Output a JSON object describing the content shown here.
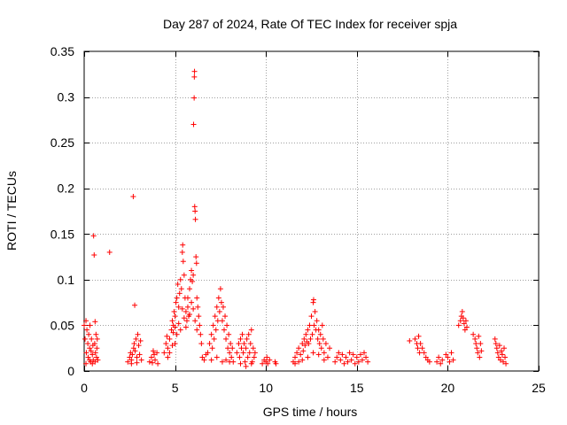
{
  "chart_data": {
    "type": "scatter",
    "title": "Day 287 of 2024, Rate Of TEC Index for receiver spja",
    "xlabel": "GPS time / hours",
    "ylabel": "ROTI / TECUs",
    "xlim": [
      0,
      25
    ],
    "ylim": [
      0,
      0.35
    ],
    "xticks": [
      0,
      5,
      10,
      15,
      20,
      25
    ],
    "xtick_labels": [
      "0",
      "5",
      "10",
      "15",
      "20",
      "25"
    ],
    "yticks": [
      0,
      0.05,
      0.1,
      0.15,
      0.2,
      0.25,
      0.3,
      0.35
    ],
    "ytick_labels": [
      "0",
      "0.05",
      "0.1",
      "0.15",
      "0.2",
      "0.25",
      "0.3",
      "0.35"
    ],
    "grid": true,
    "marker": "+",
    "color": "#ff0000",
    "series": [
      {
        "name": "ROTI",
        "points": [
          [
            0.0,
            0.05
          ],
          [
            0.05,
            0.035
          ],
          [
            0.1,
            0.055
          ],
          [
            0.12,
            0.02
          ],
          [
            0.15,
            0.045
          ],
          [
            0.2,
            0.03
          ],
          [
            0.22,
            0.015
          ],
          [
            0.25,
            0.04
          ],
          [
            0.3,
            0.025
          ],
          [
            0.32,
            0.05
          ],
          [
            0.35,
            0.01
          ],
          [
            0.38,
            0.022
          ],
          [
            0.4,
            0.035
          ],
          [
            0.45,
            0.018
          ],
          [
            0.48,
            0.028
          ],
          [
            0.5,
            0.012
          ],
          [
            0.52,
            0.148
          ],
          [
            0.55,
            0.127
          ],
          [
            0.58,
            0.03
          ],
          [
            0.6,
            0.054
          ],
          [
            0.62,
            0.02
          ],
          [
            0.65,
            0.04
          ],
          [
            0.68,
            0.015
          ],
          [
            0.7,
            0.025
          ],
          [
            0.72,
            0.035
          ],
          [
            0.75,
            0.012
          ],
          [
            0.1,
            0.008
          ],
          [
            0.3,
            0.012
          ],
          [
            0.45,
            0.008
          ],
          [
            0.6,
            0.01
          ],
          [
            1.4,
            0.13
          ],
          [
            2.4,
            0.01
          ],
          [
            2.5,
            0.015
          ],
          [
            2.55,
            0.02
          ],
          [
            2.6,
            0.012
          ],
          [
            2.65,
            0.018
          ],
          [
            2.7,
            0.191
          ],
          [
            2.72,
            0.025
          ],
          [
            2.75,
            0.03
          ],
          [
            2.78,
            0.072
          ],
          [
            2.8,
            0.022
          ],
          [
            2.85,
            0.035
          ],
          [
            2.9,
            0.015
          ],
          [
            2.95,
            0.04
          ],
          [
            3.0,
            0.028
          ],
          [
            3.05,
            0.018
          ],
          [
            3.1,
            0.033
          ],
          [
            3.15,
            0.012
          ],
          [
            2.6,
            0.008
          ],
          [
            2.9,
            0.009
          ],
          [
            3.6,
            0.01
          ],
          [
            3.7,
            0.015
          ],
          [
            3.8,
            0.022
          ],
          [
            3.85,
            0.018
          ],
          [
            3.9,
            0.012
          ],
          [
            4.0,
            0.02
          ],
          [
            4.05,
            0.008
          ],
          [
            3.75,
            0.009
          ],
          [
            4.4,
            0.02
          ],
          [
            4.5,
            0.03
          ],
          [
            4.55,
            0.038
          ],
          [
            4.6,
            0.025
          ],
          [
            4.7,
            0.035
          ],
          [
            4.8,
            0.045
          ],
          [
            4.85,
            0.055
          ],
          [
            4.9,
            0.05
          ],
          [
            4.95,
            0.065
          ],
          [
            5.0,
            0.06
          ],
          [
            5.05,
            0.075
          ],
          [
            5.1,
            0.08
          ],
          [
            5.15,
            0.095
          ],
          [
            5.2,
            0.07
          ],
          [
            5.25,
            0.085
          ],
          [
            5.3,
            0.1
          ],
          [
            5.35,
            0.09
          ],
          [
            5.4,
            0.13
          ],
          [
            5.42,
            0.138
          ],
          [
            5.45,
            0.12
          ],
          [
            5.5,
            0.105
          ],
          [
            5.55,
            0.08
          ],
          [
            5.6,
            0.065
          ],
          [
            5.65,
            0.055
          ],
          [
            5.7,
            0.07
          ],
          [
            5.75,
            0.06
          ],
          [
            5.8,
            0.09
          ],
          [
            5.85,
            0.1
          ],
          [
            5.9,
            0.11
          ],
          [
            5.95,
            0.098
          ],
          [
            6.0,
            0.105
          ],
          [
            6.02,
            0.27
          ],
          [
            6.05,
            0.299
          ],
          [
            6.06,
            0.322
          ],
          [
            6.07,
            0.328
          ],
          [
            6.08,
            0.18
          ],
          [
            6.1,
            0.175
          ],
          [
            6.12,
            0.166
          ],
          [
            6.15,
            0.125
          ],
          [
            6.18,
            0.118
          ],
          [
            6.2,
            0.08
          ],
          [
            6.25,
            0.07
          ],
          [
            6.3,
            0.06
          ],
          [
            6.35,
            0.05
          ],
          [
            6.4,
            0.04
          ],
          [
            6.45,
            0.03
          ],
          [
            6.5,
            0.015
          ],
          [
            6.6,
            0.012
          ],
          [
            6.7,
            0.018
          ],
          [
            4.9,
            0.042
          ],
          [
            5.0,
            0.048
          ],
          [
            5.1,
            0.04
          ],
          [
            5.2,
            0.052
          ],
          [
            5.3,
            0.045
          ],
          [
            5.5,
            0.058
          ],
          [
            5.6,
            0.048
          ],
          [
            5.8,
            0.062
          ],
          [
            5.9,
            0.075
          ],
          [
            6.0,
            0.068
          ],
          [
            6.1,
            0.055
          ],
          [
            6.2,
            0.045
          ],
          [
            5.4,
            0.068
          ],
          [
            5.7,
            0.08
          ],
          [
            5.0,
            0.03
          ],
          [
            4.6,
            0.015
          ],
          [
            4.7,
            0.02
          ],
          [
            4.85,
            0.028
          ],
          [
            6.8,
            0.02
          ],
          [
            6.9,
            0.03
          ],
          [
            7.0,
            0.04
          ],
          [
            7.05,
            0.025
          ],
          [
            7.1,
            0.05
          ],
          [
            7.15,
            0.035
          ],
          [
            7.2,
            0.06
          ],
          [
            7.25,
            0.045
          ],
          [
            7.3,
            0.07
          ],
          [
            7.35,
            0.055
          ],
          [
            7.4,
            0.08
          ],
          [
            7.45,
            0.065
          ],
          [
            7.5,
            0.09
          ],
          [
            7.55,
            0.075
          ],
          [
            7.6,
            0.055
          ],
          [
            7.65,
            0.07
          ],
          [
            7.7,
            0.045
          ],
          [
            7.75,
            0.06
          ],
          [
            7.8,
            0.035
          ],
          [
            7.85,
            0.05
          ],
          [
            7.9,
            0.025
          ],
          [
            7.95,
            0.04
          ],
          [
            8.0,
            0.02
          ],
          [
            8.05,
            0.03
          ],
          [
            8.1,
            0.015
          ],
          [
            8.15,
            0.025
          ],
          [
            8.2,
            0.01
          ],
          [
            7.0,
            0.012
          ],
          [
            7.3,
            0.015
          ],
          [
            7.6,
            0.01
          ],
          [
            7.8,
            0.012
          ],
          [
            8.0,
            0.01
          ],
          [
            8.4,
            0.02
          ],
          [
            8.5,
            0.03
          ],
          [
            8.55,
            0.015
          ],
          [
            8.6,
            0.035
          ],
          [
            8.65,
            0.025
          ],
          [
            8.7,
            0.04
          ],
          [
            8.75,
            0.02
          ],
          [
            8.8,
            0.03
          ],
          [
            8.85,
            0.01
          ],
          [
            8.9,
            0.025
          ],
          [
            8.95,
            0.035
          ],
          [
            9.0,
            0.015
          ],
          [
            9.05,
            0.04
          ],
          [
            9.1,
            0.02
          ],
          [
            9.15,
            0.03
          ],
          [
            9.2,
            0.045
          ],
          [
            9.25,
            0.01
          ],
          [
            9.3,
            0.025
          ],
          [
            9.35,
            0.015
          ],
          [
            9.4,
            0.02
          ],
          [
            8.6,
            0.008
          ],
          [
            8.9,
            0.005
          ],
          [
            9.2,
            0.008
          ],
          [
            9.8,
            0.008
          ],
          [
            9.9,
            0.012
          ],
          [
            10.0,
            0.01
          ],
          [
            10.05,
            0.015
          ],
          [
            10.1,
            0.008
          ],
          [
            10.2,
            0.012
          ],
          [
            10.5,
            0.01
          ],
          [
            10.55,
            0.008
          ],
          [
            11.5,
            0.01
          ],
          [
            11.6,
            0.015
          ],
          [
            11.7,
            0.02
          ],
          [
            11.8,
            0.025
          ],
          [
            11.9,
            0.018
          ],
          [
            12.0,
            0.03
          ],
          [
            12.05,
            0.022
          ],
          [
            12.1,
            0.035
          ],
          [
            12.15,
            0.028
          ],
          [
            12.2,
            0.04
          ],
          [
            12.25,
            0.032
          ],
          [
            12.3,
            0.045
          ],
          [
            12.35,
            0.03
          ],
          [
            12.4,
            0.05
          ],
          [
            12.45,
            0.035
          ],
          [
            12.5,
            0.06
          ],
          [
            12.55,
            0.04
          ],
          [
            12.6,
            0.075
          ],
          [
            12.62,
            0.078
          ],
          [
            12.65,
            0.05
          ],
          [
            12.7,
            0.065
          ],
          [
            12.75,
            0.045
          ],
          [
            12.8,
            0.055
          ],
          [
            12.85,
            0.035
          ],
          [
            12.9,
            0.045
          ],
          [
            12.95,
            0.03
          ],
          [
            13.0,
            0.04
          ],
          [
            13.05,
            0.025
          ],
          [
            13.1,
            0.05
          ],
          [
            13.15,
            0.035
          ],
          [
            13.2,
            0.02
          ],
          [
            13.3,
            0.03
          ],
          [
            13.4,
            0.015
          ],
          [
            13.5,
            0.025
          ],
          [
            11.6,
            0.008
          ],
          [
            11.8,
            0.01
          ],
          [
            12.0,
            0.012
          ],
          [
            12.3,
            0.015
          ],
          [
            12.6,
            0.02
          ],
          [
            12.9,
            0.018
          ],
          [
            13.2,
            0.012
          ],
          [
            13.8,
            0.01
          ],
          [
            13.9,
            0.015
          ],
          [
            14.0,
            0.02
          ],
          [
            14.1,
            0.012
          ],
          [
            14.2,
            0.018
          ],
          [
            14.3,
            0.008
          ],
          [
            14.4,
            0.015
          ],
          [
            14.5,
            0.01
          ],
          [
            14.6,
            0.02
          ],
          [
            14.7,
            0.012
          ],
          [
            14.8,
            0.018
          ],
          [
            14.9,
            0.008
          ],
          [
            15.0,
            0.015
          ],
          [
            15.1,
            0.01
          ],
          [
            15.2,
            0.018
          ],
          [
            15.3,
            0.012
          ],
          [
            15.4,
            0.02
          ],
          [
            15.5,
            0.015
          ],
          [
            15.6,
            0.01
          ],
          [
            17.9,
            0.033
          ],
          [
            18.2,
            0.035
          ],
          [
            18.3,
            0.03
          ],
          [
            18.35,
            0.025
          ],
          [
            18.4,
            0.038
          ],
          [
            18.45,
            0.02
          ],
          [
            18.5,
            0.03
          ],
          [
            18.6,
            0.025
          ],
          [
            18.7,
            0.02
          ],
          [
            18.8,
            0.015
          ],
          [
            18.9,
            0.012
          ],
          [
            19.0,
            0.01
          ],
          [
            19.4,
            0.01
          ],
          [
            19.5,
            0.015
          ],
          [
            19.6,
            0.008
          ],
          [
            19.7,
            0.012
          ],
          [
            19.9,
            0.018
          ],
          [
            20.0,
            0.015
          ],
          [
            20.1,
            0.01
          ],
          [
            20.2,
            0.02
          ],
          [
            20.3,
            0.012
          ],
          [
            20.6,
            0.05
          ],
          [
            20.7,
            0.055
          ],
          [
            20.75,
            0.06
          ],
          [
            20.8,
            0.065
          ],
          [
            20.85,
            0.058
          ],
          [
            20.9,
            0.052
          ],
          [
            20.95,
            0.045
          ],
          [
            21.0,
            0.055
          ],
          [
            21.05,
            0.048
          ],
          [
            21.4,
            0.04
          ],
          [
            21.5,
            0.035
          ],
          [
            21.55,
            0.03
          ],
          [
            21.6,
            0.025
          ],
          [
            21.65,
            0.02
          ],
          [
            21.7,
            0.038
          ],
          [
            21.75,
            0.015
          ],
          [
            21.8,
            0.03
          ],
          [
            21.85,
            0.022
          ],
          [
            22.6,
            0.035
          ],
          [
            22.65,
            0.03
          ],
          [
            22.7,
            0.025
          ],
          [
            22.75,
            0.02
          ],
          [
            22.8,
            0.015
          ],
          [
            22.85,
            0.028
          ],
          [
            22.9,
            0.012
          ],
          [
            22.95,
            0.022
          ],
          [
            23.0,
            0.018
          ],
          [
            23.05,
            0.01
          ],
          [
            23.1,
            0.025
          ],
          [
            23.15,
            0.015
          ],
          [
            23.2,
            0.008
          ]
        ]
      }
    ]
  }
}
